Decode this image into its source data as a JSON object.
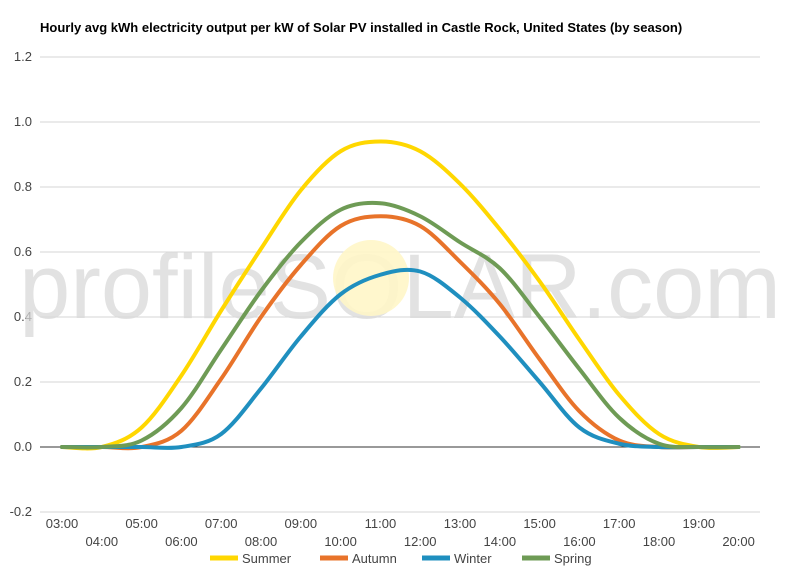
{
  "chart_data": {
    "type": "line",
    "title": "Hourly avg kWh electricity output per kW of Solar PV installed in Castle Rock, United States (by season)",
    "xlabel": "",
    "ylabel": "",
    "ylim": [
      -0.2,
      1.2
    ],
    "yticks": [
      "1.2",
      "1.0",
      "0.8",
      "0.6",
      "0.4",
      "0.2",
      "0.0",
      "-0.2"
    ],
    "grid": true,
    "legend_position": "bottom",
    "categories": [
      "03:00",
      "04:00",
      "05:00",
      "06:00",
      "07:00",
      "08:00",
      "09:00",
      "10:00",
      "11:00",
      "12:00",
      "13:00",
      "14:00",
      "15:00",
      "16:00",
      "17:00",
      "18:00",
      "19:00",
      "20:00"
    ],
    "series": [
      {
        "name": "Summer",
        "color": "#FFD700",
        "values": [
          0.0,
          0.0,
          0.06,
          0.22,
          0.42,
          0.61,
          0.79,
          0.91,
          0.94,
          0.91,
          0.81,
          0.67,
          0.51,
          0.33,
          0.16,
          0.04,
          0.0,
          0.0
        ]
      },
      {
        "name": "Autumn",
        "color": "#E8732A",
        "values": [
          0.0,
          0.0,
          0.0,
          0.05,
          0.21,
          0.4,
          0.56,
          0.68,
          0.71,
          0.68,
          0.57,
          0.44,
          0.27,
          0.11,
          0.02,
          0.0,
          0.0,
          0.0
        ]
      },
      {
        "name": "Winter",
        "color": "#1F8FBF",
        "values": [
          0.0,
          0.0,
          0.0,
          0.0,
          0.04,
          0.18,
          0.34,
          0.47,
          0.53,
          0.54,
          0.46,
          0.34,
          0.2,
          0.06,
          0.01,
          0.0,
          0.0,
          0.0
        ]
      },
      {
        "name": "Spring",
        "color": "#6E9B55",
        "values": [
          0.0,
          0.0,
          0.02,
          0.12,
          0.3,
          0.48,
          0.63,
          0.73,
          0.75,
          0.71,
          0.63,
          0.55,
          0.4,
          0.24,
          0.09,
          0.01,
          0.0,
          0.0
        ]
      }
    ],
    "watermark": "profileSOLAR.com"
  }
}
